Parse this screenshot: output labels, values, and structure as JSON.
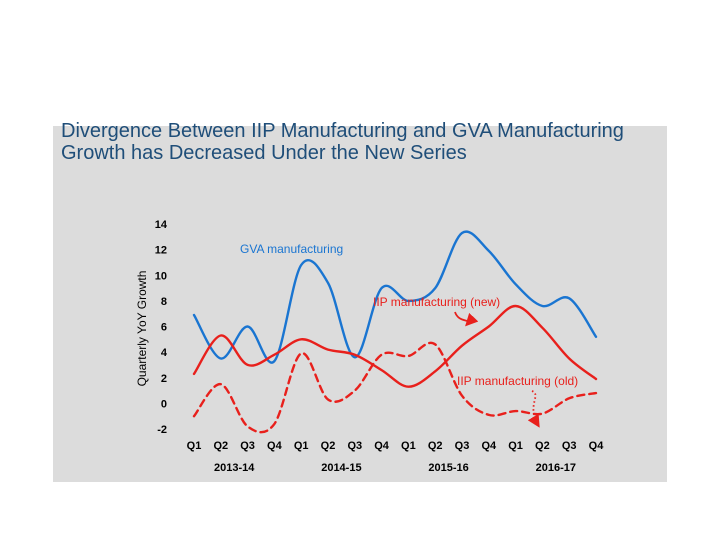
{
  "chart_data": {
    "type": "line",
    "title": "Divergence Between IIP Manufacturing and GVA Manufacturing Growth has Decreased Under the New Series",
    "xlabel": "",
    "ylabel": "Quarterly YoY Growth",
    "ylim": [
      -2,
      14
    ],
    "yticks": [
      14,
      12,
      10,
      8,
      6,
      4,
      2,
      0,
      -2
    ],
    "grid": false,
    "categories": [
      "Q1",
      "Q2",
      "Q3",
      "Q4",
      "Q1",
      "Q2",
      "Q3",
      "Q4",
      "Q1",
      "Q2",
      "Q3",
      "Q4",
      "Q1",
      "Q2",
      "Q3",
      "Q4"
    ],
    "year_groups": [
      {
        "label": "2013-14",
        "start": 0,
        "end": 3
      },
      {
        "label": "2014-15",
        "start": 4,
        "end": 7
      },
      {
        "label": "2015-16",
        "start": 8,
        "end": 11
      },
      {
        "label": "2016-17",
        "start": 12,
        "end": 15
      }
    ],
    "series": [
      {
        "name": "GVA manufacturing",
        "color": "#1a75d1",
        "dash": "solid",
        "values": [
          6.9,
          3.5,
          6.0,
          3.3,
          10.8,
          9.4,
          3.6,
          9.0,
          8.0,
          9.0,
          13.3,
          11.9,
          9.3,
          7.6,
          8.2,
          5.2
        ]
      },
      {
        "name": "IIP manufacturing (new)",
        "color": "#e8201c",
        "dash": "solid",
        "values": [
          2.3,
          5.3,
          3.0,
          3.8,
          5.0,
          4.2,
          3.8,
          2.6,
          1.3,
          2.5,
          4.5,
          6.0,
          7.6,
          5.9,
          3.5,
          1.9
        ]
      },
      {
        "name": "IIP manufacturing (old)",
        "color": "#e8201c",
        "dash": "dashed",
        "values": [
          -1.0,
          1.5,
          -1.8,
          -1.6,
          3.9,
          0.3,
          1.0,
          3.8,
          3.7,
          4.6,
          0.6,
          -0.9,
          -0.6,
          -0.8,
          0.4,
          0.8
        ]
      }
    ],
    "annotations": [
      {
        "text": "GVA manufacturing",
        "series": 0,
        "color": "#1a75d1"
      },
      {
        "text": "IIP manufacturing (new)",
        "series": 1,
        "color": "#e8201c",
        "arrow_to_category": 11,
        "arrow_style": "solid"
      },
      {
        "text": "IIP manufacturing (old)",
        "series": 2,
        "color": "#e8201c",
        "arrow_to_category": 13,
        "arrow_style": "dotted"
      }
    ]
  }
}
